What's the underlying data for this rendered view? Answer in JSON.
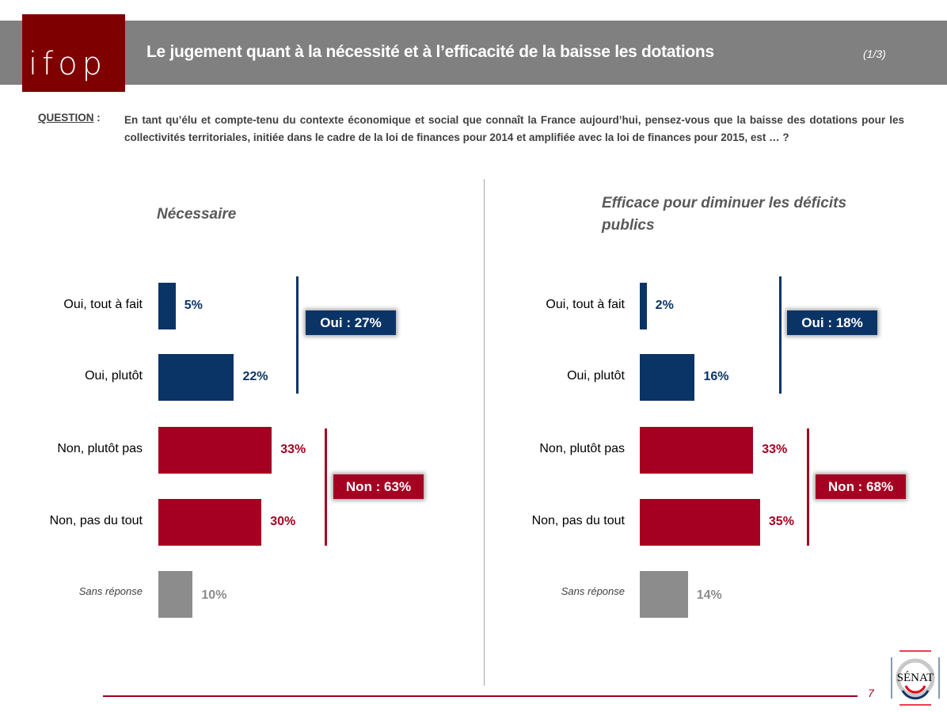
{
  "header": {
    "title": "Le jugement quant à la nécessité et à l’efficacité de la baisse les dotations",
    "page_fraction": "(1/3)",
    "logo_text": "ifop"
  },
  "question": {
    "label": "QUESTION",
    "colon": " :",
    "text": "En tant qu’élu et compte-tenu du contexte économique et social que connaît la France aujourd’hui, pensez-vous que la baisse des dotations pour les collectivités territoriales, initiée dans le cadre de la loi de finances pour 2014 et amplifiée avec la loi de finances pour 2015, est … ?"
  },
  "colors": {
    "oui": "#0b3466",
    "non": "#a50021",
    "sans": "#8c8c8c"
  },
  "chart_data": [
    {
      "type": "bar",
      "orientation": "horizontal",
      "title": "Nécessaire",
      "categories": [
        "Oui, tout à fait",
        "Oui, plutôt",
        "Non, plutôt pas",
        "Non, pas du tout",
        "Sans réponse"
      ],
      "values": [
        5,
        22,
        33,
        30,
        10
      ],
      "value_labels": [
        "5%",
        "22%",
        "33%",
        "30%",
        "10%"
      ],
      "groups": [
        {
          "label": "Oui : 27%",
          "value": 27
        },
        {
          "label": "Non : 63%",
          "value": 63
        }
      ]
    },
    {
      "type": "bar",
      "orientation": "horizontal",
      "title": "Efficace pour diminuer les déficits publics",
      "categories": [
        "Oui, tout à fait",
        "Oui, plutôt",
        "Non, plutôt pas",
        "Non, pas du tout",
        "Sans réponse"
      ],
      "values": [
        2,
        16,
        33,
        35,
        14
      ],
      "value_labels": [
        "2%",
        "16%",
        "33%",
        "35%",
        "14%"
      ],
      "groups": [
        {
          "label": "Oui : 18%",
          "value": 18
        },
        {
          "label": "Non : 68%",
          "value": 68
        }
      ]
    }
  ],
  "footer": {
    "page_number": "7",
    "senat_logo": "SÉNAT"
  }
}
